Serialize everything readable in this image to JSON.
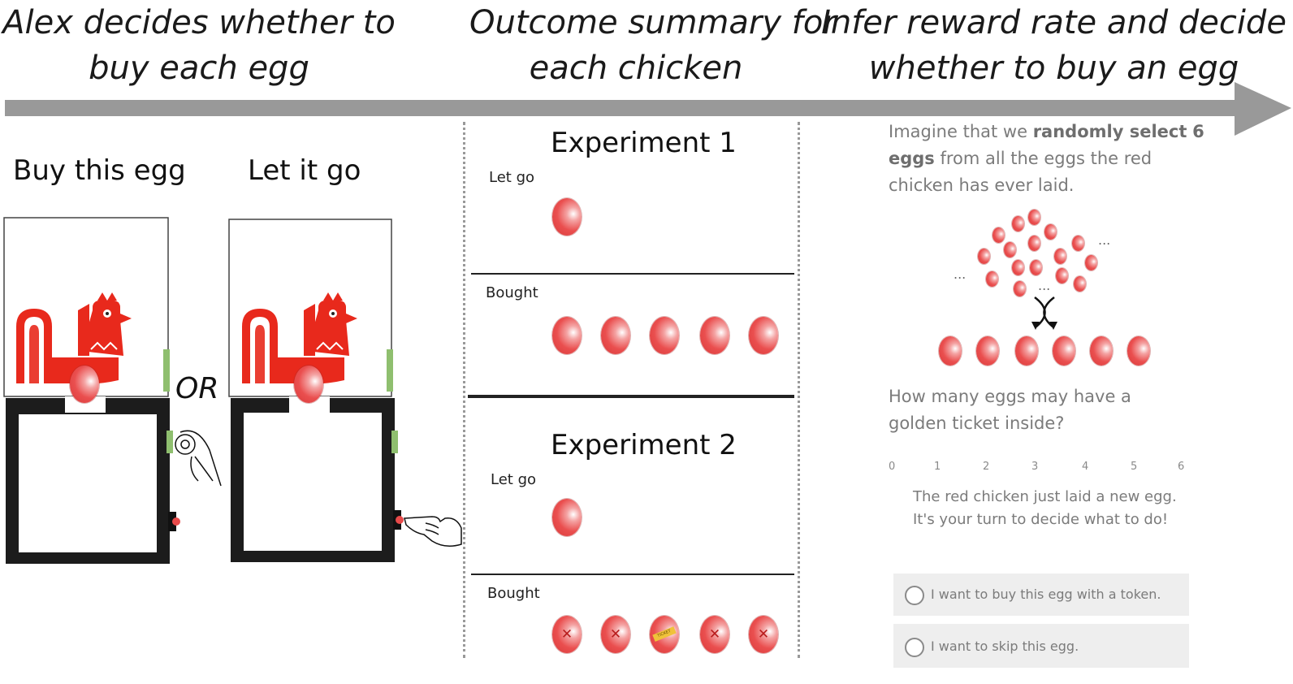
{
  "headers": {
    "col1": [
      "Alex decides whether to",
      "buy each egg"
    ],
    "col2": [
      "Outcome summary for",
      "each chicken"
    ],
    "col3": [
      "Infer reward rate and decide",
      "whether to buy an egg"
    ]
  },
  "options": {
    "buy_title": "Buy this egg",
    "let_title": "Let it go",
    "or_label": "OR"
  },
  "experiments": [
    {
      "title": "Experiment 1",
      "rows": [
        {
          "label": "Let go",
          "eggs": [
            "plain"
          ]
        },
        {
          "label": "Bought",
          "eggs": [
            "plain",
            "plain",
            "plain",
            "plain",
            "plain"
          ]
        }
      ]
    },
    {
      "title": "Experiment 2",
      "rows": [
        {
          "label": "Let go",
          "eggs": [
            "plain"
          ]
        },
        {
          "label": "Bought",
          "eggs": [
            "x",
            "x",
            "ticket",
            "x",
            "x"
          ]
        }
      ]
    }
  ],
  "ticket_text": "TICKET",
  "survey": {
    "intro_pre": "Imagine that we ",
    "intro_bold1": "randomly select",
    "intro_bold2": "6 eggs",
    "intro_post": " from all the eggs the red chicken has ever laid.",
    "pool_ellipsis": "...",
    "question": "How many eggs may have a golden ticket inside?",
    "scale": [
      "0",
      "1",
      "2",
      "3",
      "4",
      "5",
      "6"
    ],
    "prompt": "The red chicken just laid a new egg. It's your turn to decide what to do!",
    "choices": [
      "I want to buy this egg with a token.",
      "I want to skip this egg."
    ]
  },
  "colors": {
    "chicken": "#e8291c",
    "egg": "#e84a4a",
    "box": "#1c1c1c",
    "lever": "#8fbf6f",
    "arrow": "#999999",
    "survey_text": "#7b7b7b"
  }
}
